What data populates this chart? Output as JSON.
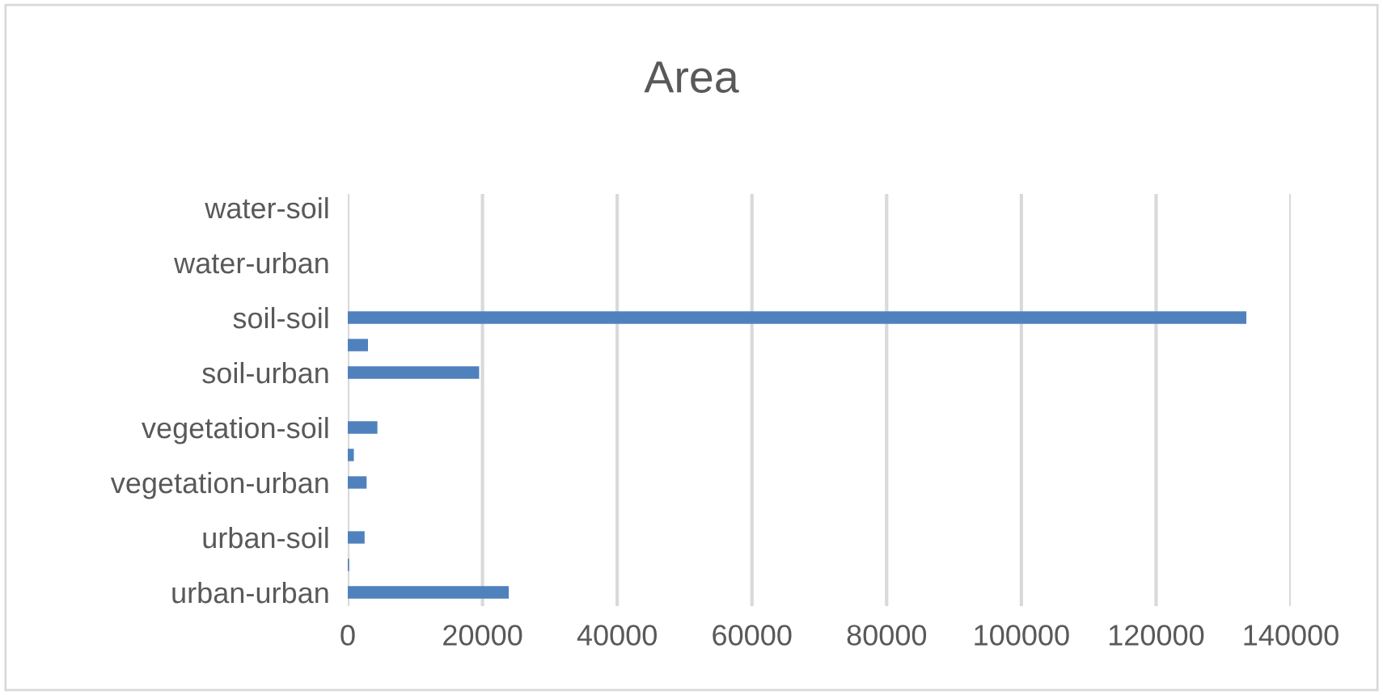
{
  "chart_data": {
    "type": "bar",
    "orientation": "horizontal",
    "title": "Area",
    "categories": [
      "water-soil",
      null,
      "water-urban",
      null,
      "soil-soil",
      null,
      "soil-urban",
      null,
      "vegetation-soil",
      null,
      "vegetation-urban",
      null,
      "urban-soil",
      null,
      "urban-urban"
    ],
    "values": [
      0,
      0,
      0,
      0,
      133400,
      3000,
      19500,
      0,
      4400,
      900,
      2800,
      0,
      2500,
      200,
      23900
    ],
    "color": "#4f81bd",
    "xlim": [
      0,
      140000
    ],
    "xticks": [
      0,
      20000,
      40000,
      60000,
      80000,
      100000,
      120000,
      140000
    ],
    "grid": "x",
    "legend": false
  }
}
